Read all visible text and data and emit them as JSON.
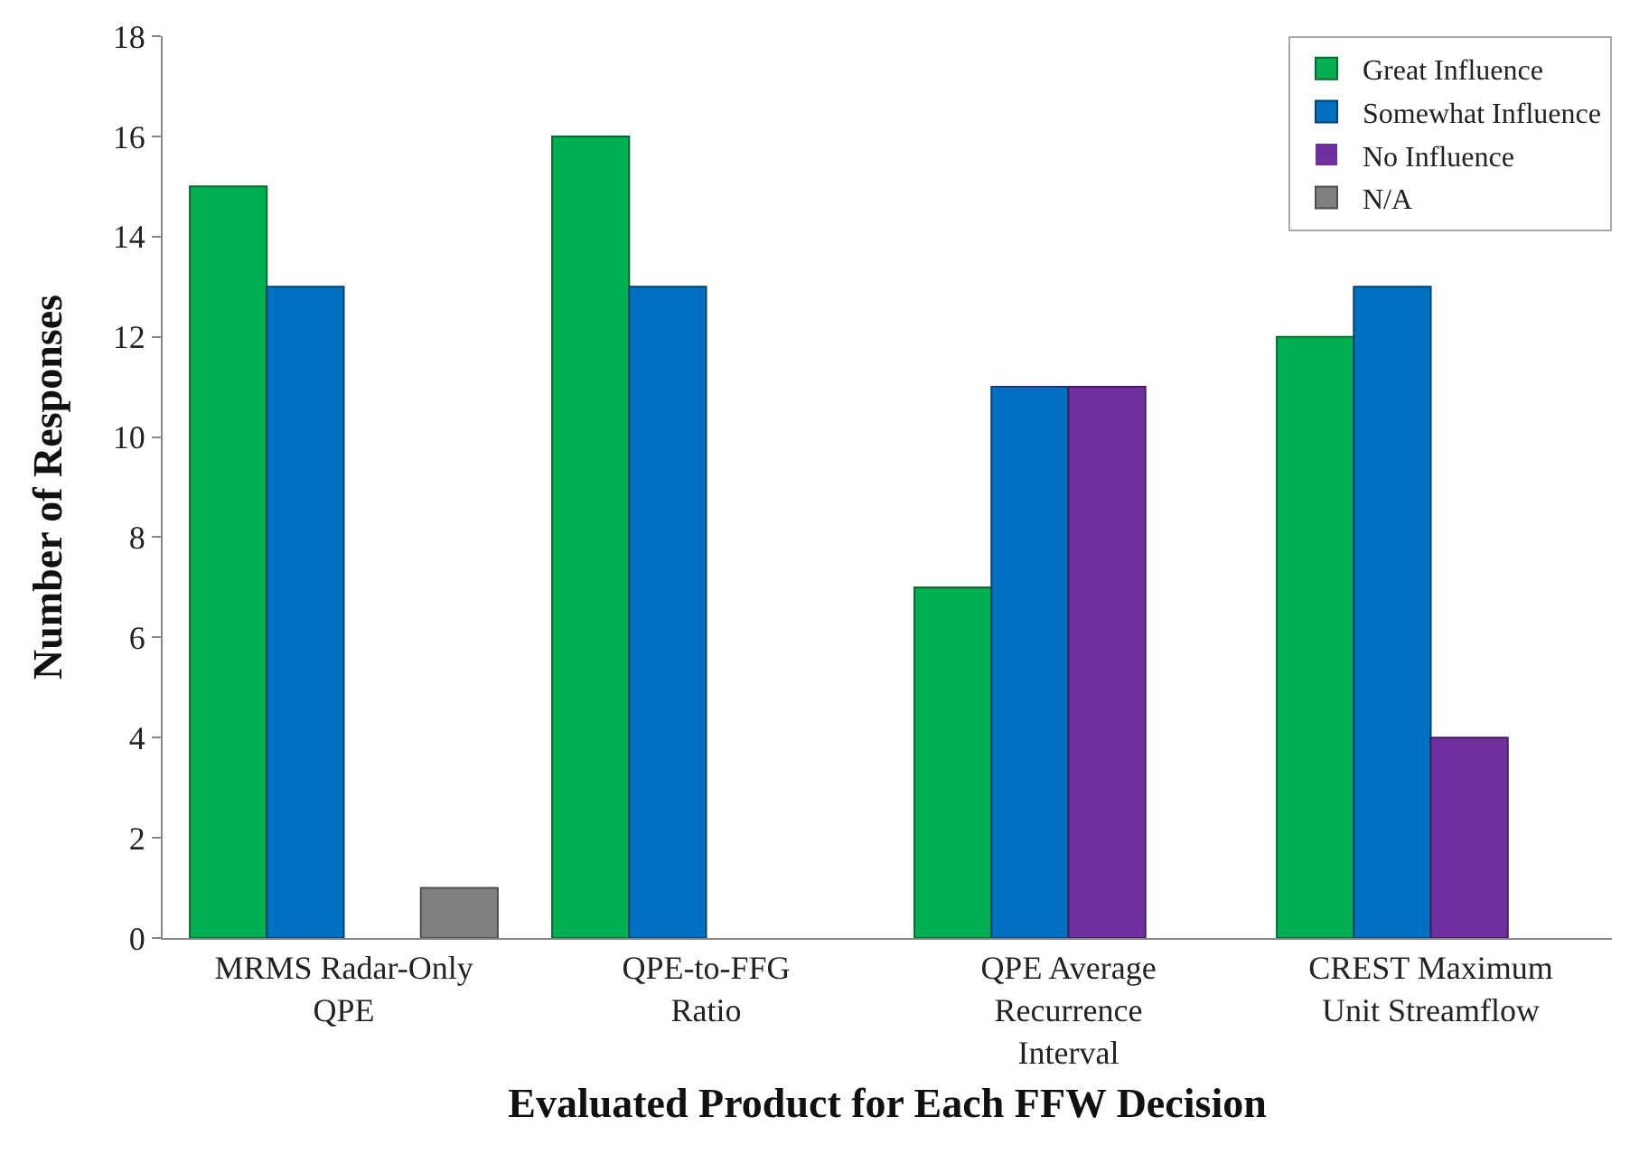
{
  "chart_data": {
    "type": "bar",
    "xlabel": "Evaluated Product for Each FFW Decision",
    "ylabel": "Number of Responses",
    "categories": [
      "MRMS Radar-Only QPE",
      "QPE-to-FFG Ratio",
      "QPE Average Recurrence Interval",
      "CREST Maximum Unit Streamflow"
    ],
    "series": [
      {
        "name": "Great Influence",
        "color": "#00b050",
        "values": [
          15,
          16,
          7,
          12
        ]
      },
      {
        "name": "Somewhat Influence",
        "color": "#0070c0",
        "values": [
          13,
          13,
          11,
          13
        ]
      },
      {
        "name": "No Influence",
        "color": "#7030a0",
        "values": [
          0,
          0,
          11,
          4
        ]
      },
      {
        "name": "N/A",
        "color": "#808080",
        "values": [
          1,
          0,
          0,
          0
        ]
      }
    ],
    "ylim": [
      0,
      18
    ],
    "yticks": [
      0,
      2,
      4,
      6,
      8,
      10,
      12,
      14,
      16,
      18
    ],
    "grid": false,
    "legend": "top right"
  }
}
